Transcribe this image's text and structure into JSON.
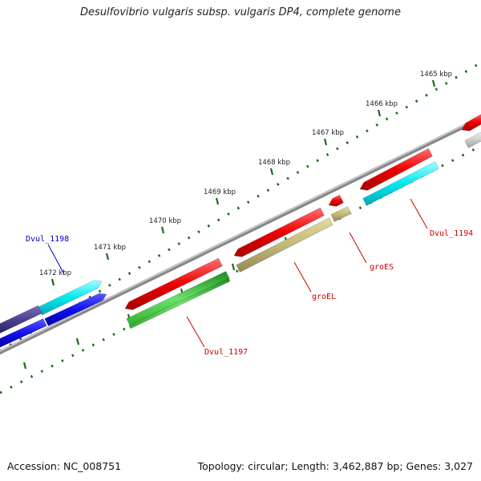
{
  "title": "Desulfovibrio vulgaris subsp. vulgaris DP4, complete genome",
  "footer": {
    "accession": "Accession: NC_008751",
    "summary": "Topology: circular; Length: 3,462,887 bp; Genes: 3,027"
  },
  "colors": {
    "backbone": "#8a8a8a",
    "tick": "#1a6b1a",
    "label_red": "#cc0000",
    "label_blue": "#0000cc"
  },
  "ticks": [
    {
      "label": "1465 kbp"
    },
    {
      "label": "1466 kbp"
    },
    {
      "label": "1467 kbp"
    },
    {
      "label": "1468 kbp"
    },
    {
      "label": "1469 kbp"
    },
    {
      "label": "1470 kbp"
    },
    {
      "label": "1471 kbp"
    },
    {
      "label": "1472 kbp"
    }
  ],
  "genes": [
    {
      "name": "Dvul_1198",
      "label_color": "blue"
    },
    {
      "name": "Dvul_1197",
      "label_color": "red"
    },
    {
      "name": "groEL",
      "label_color": "red"
    },
    {
      "name": "groES",
      "label_color": "red"
    },
    {
      "name": "Dvul_1194",
      "label_color": "red"
    }
  ]
}
